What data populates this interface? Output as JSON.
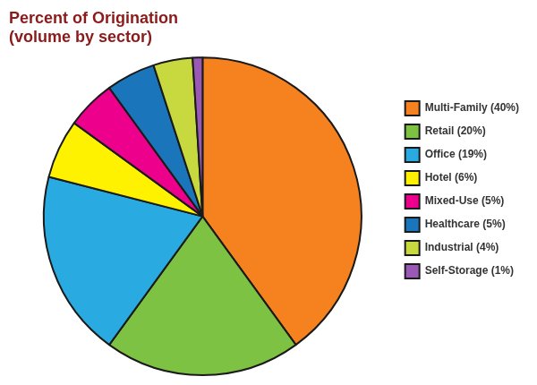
{
  "chart_data": {
    "type": "pie",
    "title": "Percent of Origination\n(volume by sector)",
    "categories": [
      "Multi-Family (40%)",
      "Retail (20%)",
      "Office (19%)",
      "Hotel (6%)",
      "Mixed-Use (5%)",
      "Healthcare (5%)",
      "Industrial (4%)",
      "Self-Storage (1%)"
    ],
    "values": [
      40,
      20,
      19,
      6,
      5,
      5,
      4,
      1
    ],
    "colors": [
      "#F5821F",
      "#7DC242",
      "#29ABE2",
      "#FFF200",
      "#EC008C",
      "#1B75BB",
      "#C8D940",
      "#9B59B6"
    ],
    "legend": "right"
  }
}
